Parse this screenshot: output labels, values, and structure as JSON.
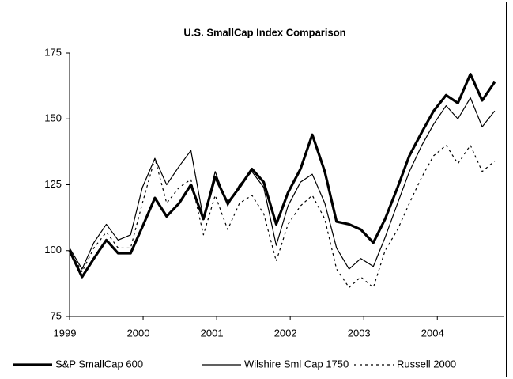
{
  "chart_data": {
    "type": "line",
    "title": "U.S. SmallCap Index Comparison",
    "x": [
      1999.0,
      1999.17,
      1999.33,
      1999.5,
      1999.66,
      1999.83,
      1999.99,
      2000.16,
      2000.32,
      2000.49,
      2000.65,
      2000.82,
      2000.98,
      2001.15,
      2001.31,
      2001.48,
      2001.64,
      2001.81,
      2001.97,
      2002.14,
      2002.3,
      2002.47,
      2002.63,
      2002.8,
      2002.96,
      2003.13,
      2003.29,
      2003.46,
      2003.62,
      2003.79,
      2003.95,
      2004.12,
      2004.28,
      2004.45,
      2004.61,
      2004.78
    ],
    "series": [
      {
        "name": "S&P SmallCap 600",
        "color": "#000000",
        "line_width": 3.2,
        "dash": "solid",
        "values": [
          100,
          90,
          97,
          104,
          99,
          99,
          109,
          120,
          113,
          118,
          125,
          112,
          128,
          118,
          124,
          131,
          126,
          110,
          122,
          131,
          144,
          130,
          111,
          110,
          108,
          103,
          112,
          124,
          136,
          145,
          153,
          159,
          156,
          167,
          157,
          164
        ]
      },
      {
        "name": "Wilshire Sml Cap 1750",
        "color": "#000000",
        "line_width": 1.2,
        "dash": "solid",
        "values": [
          101,
          93,
          103,
          110,
          104,
          106,
          124,
          135,
          125,
          132,
          138,
          112,
          130,
          117,
          125,
          130,
          124,
          102,
          117,
          126,
          129,
          118,
          101,
          93,
          97,
          94,
          105,
          118,
          130,
          140,
          148,
          155,
          150,
          158,
          147,
          153
        ]
      },
      {
        "name": "Russell 2000",
        "color": "#000000",
        "line_width": 1.2,
        "dash": "dotted",
        "values": [
          100,
          92,
          101,
          107,
          101,
          101,
          118,
          135,
          118,
          124,
          127,
          106,
          121,
          108,
          118,
          121,
          114,
          96,
          110,
          117,
          121,
          112,
          93,
          86,
          90,
          86,
          100,
          108,
          118,
          128,
          136,
          140,
          133,
          140,
          130,
          134
        ]
      }
    ],
    "xlim": [
      1999,
      2004.9
    ],
    "xticks": [
      1999,
      2000,
      2001,
      2002,
      2003,
      2004
    ],
    "ylim": [
      75,
      175
    ],
    "yticks": [
      75,
      100,
      125,
      150,
      175
    ],
    "grid": false,
    "legend": "bottom"
  }
}
